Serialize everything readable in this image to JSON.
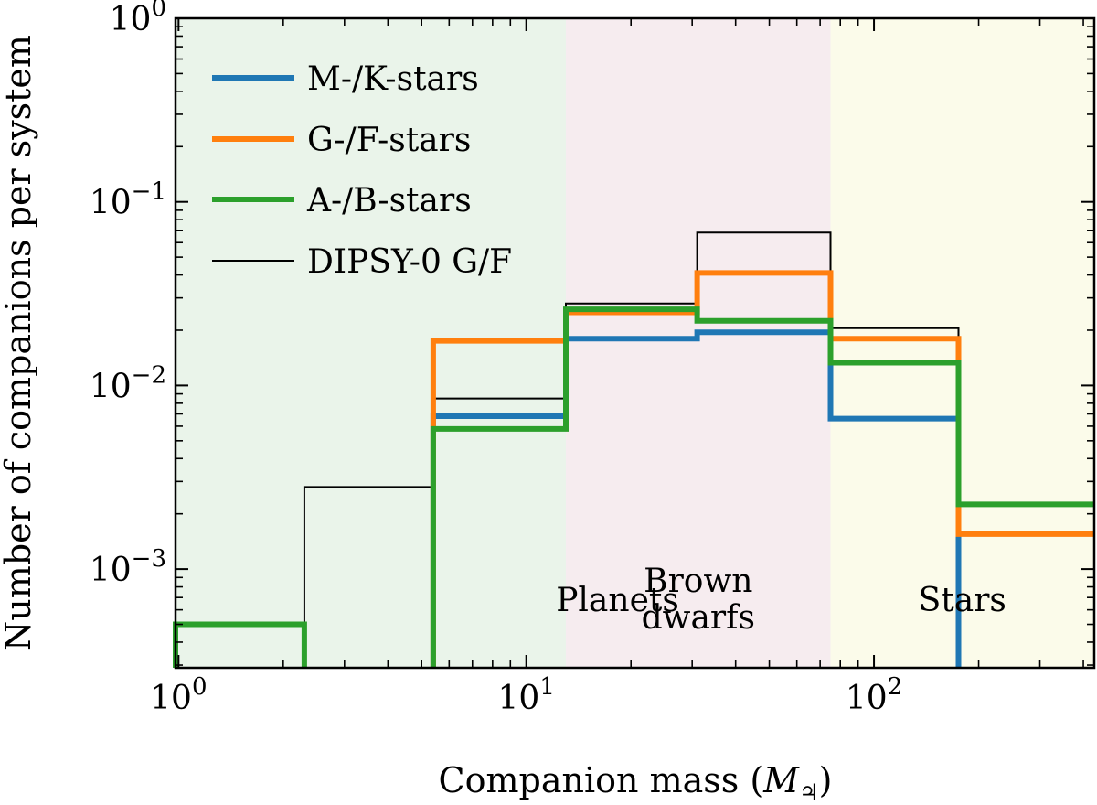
{
  "chart_data": {
    "type": "line",
    "subtype": "step-histogram",
    "xscale": "log",
    "yscale": "log",
    "xlim": [
      0.98,
      430
    ],
    "ylim": [
      0.00029,
      1.0
    ],
    "xlabel_main": "Companion mass (",
    "xlabel_symbol": "M",
    "xlabel_sub": "♃",
    "xlabel_end": ")",
    "ylabel": "Number of companions per system",
    "x_ticks": [
      {
        "value": 1,
        "base": "10",
        "exp": "0"
      },
      {
        "value": 10,
        "base": "10",
        "exp": "1"
      },
      {
        "value": 100,
        "base": "10",
        "exp": "2"
      }
    ],
    "y_ticks": [
      {
        "value": 1,
        "base": "10",
        "exp": "0"
      },
      {
        "value": 0.1,
        "base": "10",
        "exp": "−1"
      },
      {
        "value": 0.01,
        "base": "10",
        "exp": "−2"
      },
      {
        "value": 0.001,
        "base": "10",
        "exp": "−3"
      }
    ],
    "regions": [
      {
        "label_lines": [
          "Planets"
        ],
        "x0": 0.98,
        "x1": 13,
        "color": "#eaf4ea"
      },
      {
        "label_lines": [
          "Brown",
          "dwarfs"
        ],
        "x0": 13,
        "x1": 75,
        "color": "#f6ecef"
      },
      {
        "label_lines": [
          "Stars"
        ],
        "x0": 75,
        "x1": 430,
        "color": "#fbfbea"
      }
    ],
    "bin_edges": [
      0.98,
      2.3,
      5.4,
      13,
      31,
      75,
      175,
      430
    ],
    "series": [
      {
        "name": "M-/K-stars",
        "color": "#1f77b4",
        "width": 6,
        "values": [
          null,
          null,
          0.0068,
          0.018,
          0.0195,
          0.0066,
          null
        ]
      },
      {
        "name": "G-/F-stars",
        "color": "#ff7f0e",
        "width": 6,
        "values": [
          null,
          null,
          0.0175,
          0.025,
          0.041,
          0.018,
          0.00155
        ]
      },
      {
        "name": "A-/B-stars",
        "color": "#2ca02c",
        "width": 6,
        "values": [
          0.0005,
          null,
          0.0058,
          0.026,
          0.0225,
          0.0133,
          0.00225
        ]
      },
      {
        "name": "DIPSY-0 G/F",
        "color": "#000000",
        "width": 2,
        "values": [
          null,
          0.0028,
          0.0085,
          0.028,
          0.068,
          0.0205,
          null
        ]
      }
    ],
    "legend": {
      "position": "top-left"
    },
    "grid": false
  }
}
